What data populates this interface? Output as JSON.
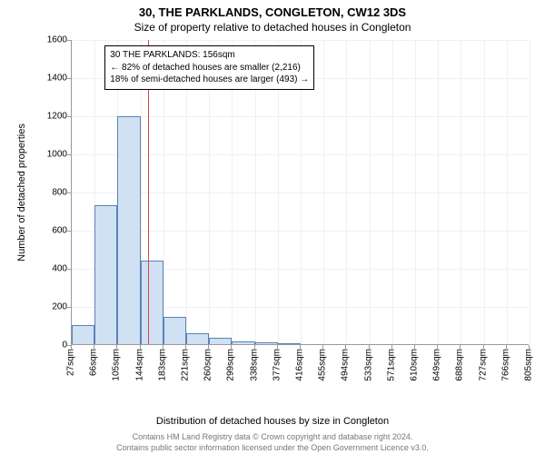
{
  "header": {
    "line1": "30, THE PARKLANDS, CONGLETON, CW12 3DS",
    "line2": "Size of property relative to detached houses in Congleton"
  },
  "chart": {
    "type": "histogram",
    "ylabel": "Number of detached properties",
    "xlabel": "Distribution of detached houses by size in Congleton",
    "ylim": [
      0,
      1600
    ],
    "ytick_step": 200,
    "yticks": [
      0,
      200,
      400,
      600,
      800,
      1000,
      1200,
      1400,
      1600
    ],
    "xticks": [
      "27sqm",
      "66sqm",
      "105sqm",
      "144sqm",
      "183sqm",
      "221sqm",
      "260sqm",
      "299sqm",
      "338sqm",
      "377sqm",
      "416sqm",
      "455sqm",
      "494sqm",
      "533sqm",
      "571sqm",
      "610sqm",
      "649sqm",
      "688sqm",
      "727sqm",
      "766sqm",
      "805sqm"
    ],
    "xtick_ratios": [
      0.0,
      0.05,
      0.1,
      0.15,
      0.2,
      0.25,
      0.3,
      0.35,
      0.4,
      0.45,
      0.5,
      0.55,
      0.6,
      0.65,
      0.7,
      0.75,
      0.8,
      0.85,
      0.9,
      0.95,
      1.0
    ],
    "bars": [
      {
        "x_ratio": 0.0,
        "width_ratio": 0.05,
        "value": 100
      },
      {
        "x_ratio": 0.05,
        "width_ratio": 0.05,
        "value": 730
      },
      {
        "x_ratio": 0.1,
        "width_ratio": 0.05,
        "value": 1195
      },
      {
        "x_ratio": 0.15,
        "width_ratio": 0.05,
        "value": 440
      },
      {
        "x_ratio": 0.2,
        "width_ratio": 0.05,
        "value": 145
      },
      {
        "x_ratio": 0.25,
        "width_ratio": 0.05,
        "value": 55
      },
      {
        "x_ratio": 0.3,
        "width_ratio": 0.05,
        "value": 35
      },
      {
        "x_ratio": 0.35,
        "width_ratio": 0.05,
        "value": 15
      },
      {
        "x_ratio": 0.4,
        "width_ratio": 0.05,
        "value": 8
      },
      {
        "x_ratio": 0.45,
        "width_ratio": 0.05,
        "value": 3
      }
    ],
    "bar_fill": "#cfe1f3",
    "bar_stroke": "#5a82b7",
    "grid_color": "#eef0f4",
    "axis_color": "#999999",
    "background_color": "#ffffff",
    "marker": {
      "x_ratio": 0.166,
      "color": "#d94646"
    },
    "infobox": {
      "line1": "30 THE PARKLANDS: 156sqm",
      "line2": "← 82% of detached houses are smaller (2,216)",
      "line3": "18% of semi-detached houses are larger (493) →",
      "left_ratio": 0.072,
      "top_ratio": 0.018
    },
    "label_fontsize": 11,
    "tick_fontsize": 10,
    "title_fontsize": 13
  },
  "footer": {
    "line1": "Contains HM Land Registry data © Crown copyright and database right 2024.",
    "line2": "Contains public sector information licensed under the Open Government Licence v3.0."
  }
}
